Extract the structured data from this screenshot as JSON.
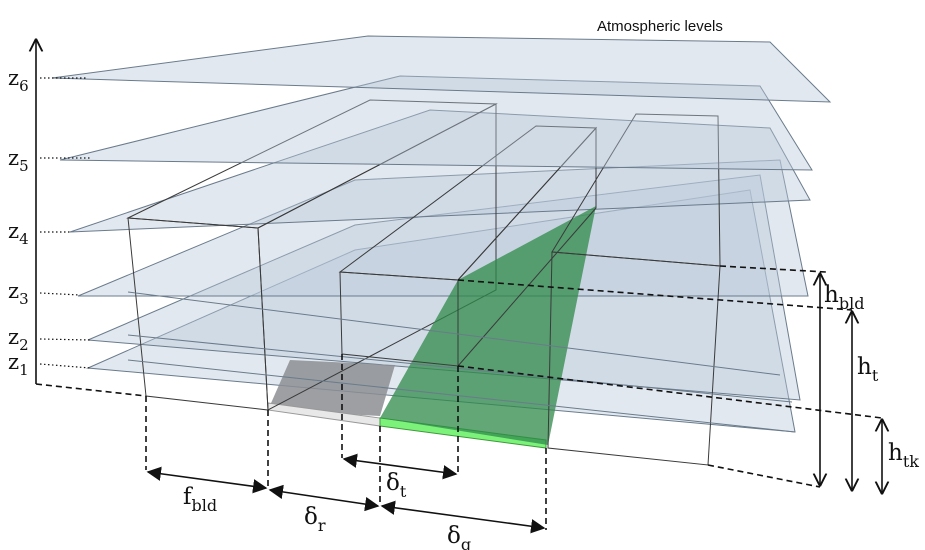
{
  "title": "Atmospheric levels",
  "levels": [
    {
      "label": "z",
      "sub": "6"
    },
    {
      "label": "z",
      "sub": "5"
    },
    {
      "label": "z",
      "sub": "4"
    },
    {
      "label": "z",
      "sub": "3"
    },
    {
      "label": "z",
      "sub": "2"
    },
    {
      "label": "z",
      "sub": "1"
    }
  ],
  "dims": {
    "f_bld": {
      "main": "f",
      "sub": "bld"
    },
    "delta_r": {
      "main": "δ",
      "sub": "r"
    },
    "delta_t": {
      "main": "δ",
      "sub": "t"
    },
    "delta_g": {
      "main": "δ",
      "sub": "g"
    },
    "h_bld": {
      "main": "h",
      "sub": "bld"
    },
    "h_t": {
      "main": "h",
      "sub": "t"
    },
    "h_tk": {
      "main": "h",
      "sub": "tk"
    }
  },
  "colors": {
    "building_front": "#f1efbf",
    "building_roof": "#7f7a63",
    "tree_front": "#55c752",
    "tree_side": "#2f8a4a",
    "tree_top": "#237540",
    "tree_ground": "#7df27b",
    "road": "#e8e8e8",
    "plane": "#b9c9d9"
  }
}
